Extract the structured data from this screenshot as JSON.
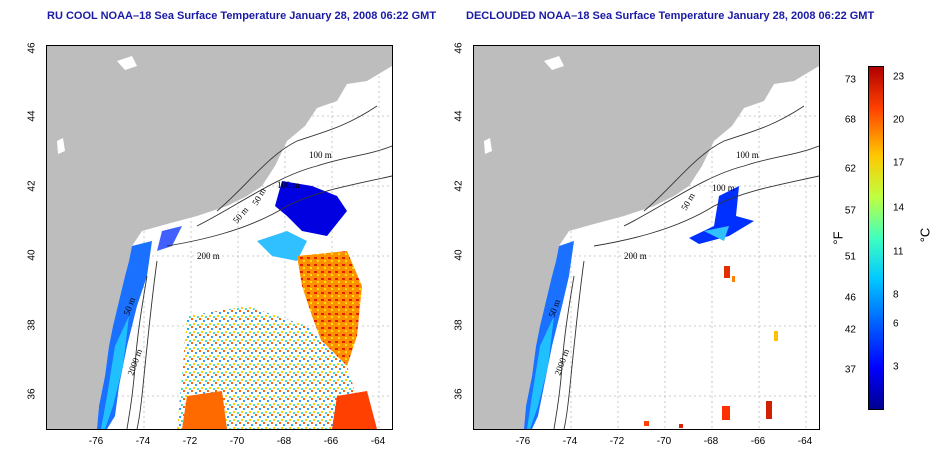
{
  "panels": [
    {
      "title": "RU COOL NOAA–18 Sea Surface Temperature January 28, 2008 06:22 GMT",
      "contours": [
        "100 m",
        "50 m",
        "100 m",
        "200 m",
        "50 m",
        "50 m",
        "2000 m"
      ]
    },
    {
      "title": "DECLOUDED NOAA–18 Sea Surface Temperature January 28, 2008 06:22 GMT",
      "contours": [
        "100 m",
        "100 m",
        "50 m",
        "200 m",
        "50 m",
        "2000 m"
      ]
    }
  ],
  "x_ticks": [
    "-76",
    "-74",
    "-72",
    "-70",
    "-68",
    "-66",
    "-64"
  ],
  "y_ticks": [
    "46",
    "44",
    "42",
    "40",
    "38",
    "36"
  ],
  "colorbar": {
    "fahrenheit_label": "°F",
    "celsius_label": "°C",
    "fahrenheit_ticks": [
      "73",
      "68",
      "62",
      "57",
      "51",
      "46",
      "42",
      "37"
    ],
    "celsius_ticks": [
      "23",
      "20",
      "17",
      "14",
      "11",
      "8",
      "6",
      "3"
    ],
    "colors": [
      "#00008f",
      "#0000ff",
      "#0060ff",
      "#00c8ff",
      "#40ffbf",
      "#bfff40",
      "#ffc800",
      "#ff4000",
      "#b00000"
    ]
  }
}
